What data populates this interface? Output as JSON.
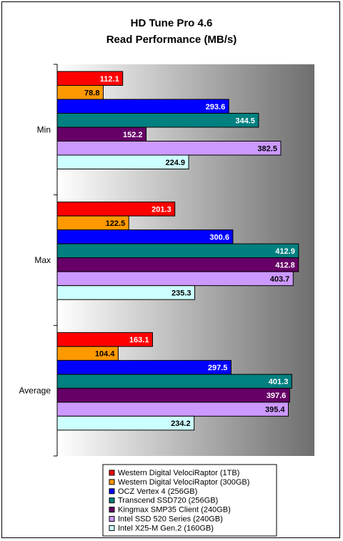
{
  "chart_data": {
    "type": "bar",
    "orientation": "horizontal",
    "title_lines": [
      "HD Tune Pro 4.6",
      "Read Performance (MB/s)"
    ],
    "categories": [
      "Min",
      "Max",
      "Average"
    ],
    "xlim": [
      0,
      440
    ],
    "grid": false,
    "legend_position": "bottom",
    "series": [
      {
        "name": "Western Digital VelociRaptor (1TB)",
        "color": "#ff0000",
        "label_color": "#ffffff",
        "values": [
          112.1,
          201.3,
          163.1
        ]
      },
      {
        "name": "Western Digital VelociRaptor (300GB)",
        "color": "#ff9900",
        "label_color": "#000000",
        "values": [
          78.8,
          122.5,
          104.4
        ]
      },
      {
        "name": "OCZ Vertex 4 (256GB)",
        "color": "#0000ff",
        "label_color": "#ffffff",
        "values": [
          293.6,
          300.6,
          297.5
        ]
      },
      {
        "name": "Transcend SSD720 (256GB)",
        "color": "#008080",
        "label_color": "#ffffff",
        "values": [
          344.5,
          412.9,
          401.3
        ]
      },
      {
        "name": "Kingmax SMP35 Client (240GB)",
        "color": "#660066",
        "label_color": "#ffffff",
        "values": [
          152.2,
          412.8,
          397.6
        ]
      },
      {
        "name": "Intel SSD 520 Series (240GB)",
        "color": "#cc99ff",
        "label_color": "#000000",
        "values": [
          382.5,
          403.7,
          395.4
        ]
      },
      {
        "name": "Intel X25-M Gen.2 (160GB)",
        "color": "#ccffff",
        "label_color": "#000000",
        "values": [
          224.9,
          235.3,
          234.2
        ]
      }
    ]
  }
}
